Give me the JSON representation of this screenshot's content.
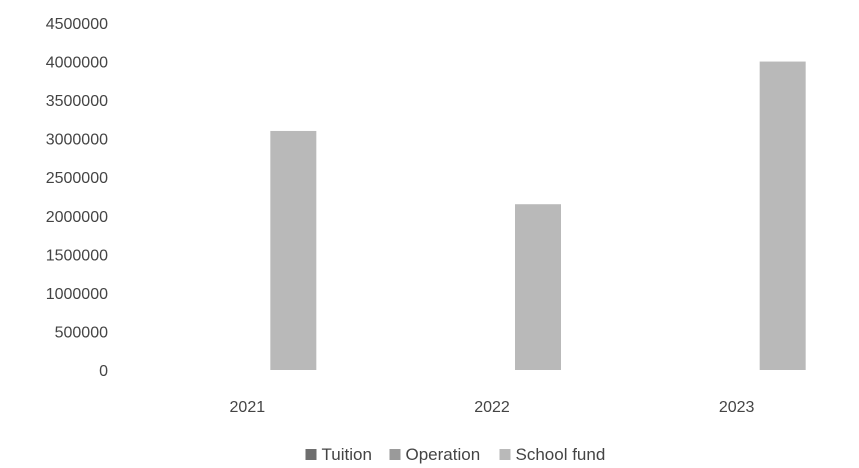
{
  "chart_data": {
    "type": "bar",
    "categories": [
      "2021",
      "2022",
      "2023"
    ],
    "series": [
      {
        "name": "Tuition",
        "values": [
          0,
          0,
          0
        ],
        "color": "#6e6e6e"
      },
      {
        "name": "Operation",
        "values": [
          0,
          0,
          0
        ],
        "color": "#9a9a9a"
      },
      {
        "name": "School fund",
        "values": [
          3100000,
          2150000,
          4000000
        ],
        "color": "#b9b9b9"
      }
    ],
    "yticks": [
      "0",
      "500000",
      "1000000",
      "1500000",
      "2000000",
      "2500000",
      "3000000",
      "3500000",
      "4000000",
      "4500000"
    ],
    "ylim": [
      0,
      4500000
    ],
    "grid": false,
    "legend": "bottom"
  }
}
